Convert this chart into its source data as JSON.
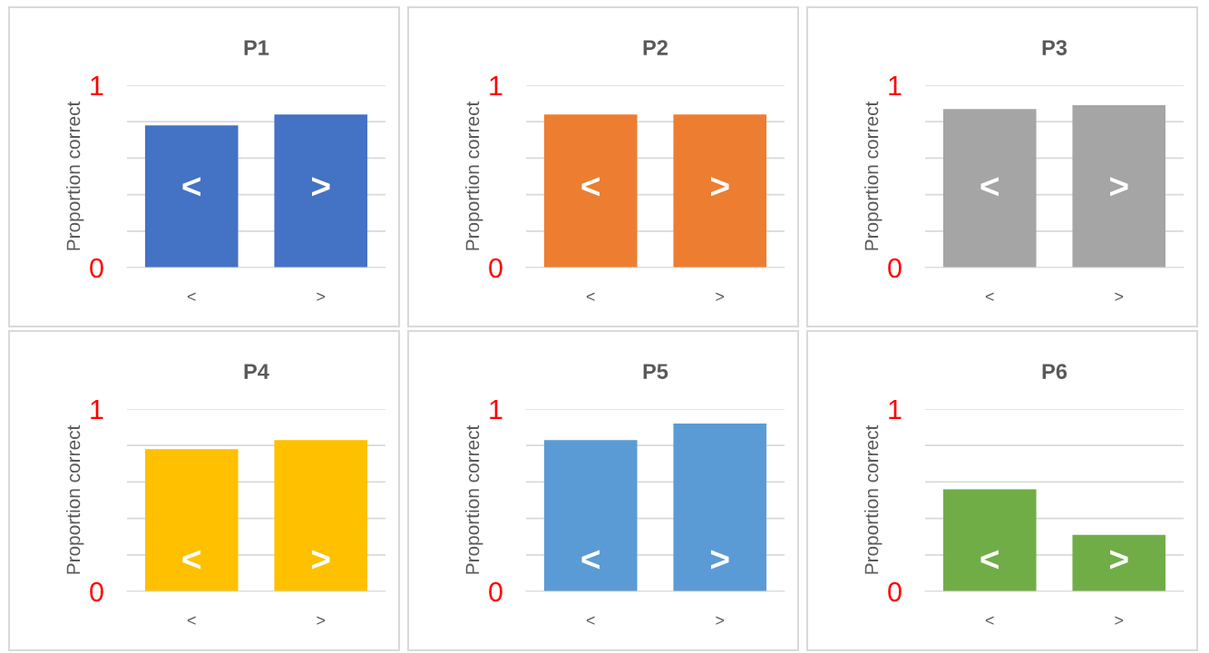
{
  "chart_data": [
    {
      "type": "bar",
      "title": "P1",
      "ylabel": "Proportion correct",
      "categories": [
        "<",
        ">"
      ],
      "series": [
        {
          "color": "#4472c4",
          "values": [
            0.78,
            0.84
          ]
        }
      ],
      "ylim": [
        0,
        1
      ],
      "yticks": [
        0,
        {
          "value": 0.2,
          "label": null
        },
        {
          "value": 0.4,
          "label": null
        },
        {
          "value": 0.6,
          "label": null
        },
        {
          "value": 0.8,
          "label": null
        },
        1
      ],
      "grid": "y",
      "annotations": [
        "<",
        ">"
      ]
    },
    {
      "type": "bar",
      "title": "P2",
      "ylabel": "Proportion correct",
      "categories": [
        "<",
        ">"
      ],
      "series": [
        {
          "color": "#ed7d31",
          "values": [
            0.84,
            0.84
          ]
        }
      ],
      "ylim": [
        0,
        1
      ],
      "yticks": [
        0,
        {
          "value": 0.2,
          "label": null
        },
        {
          "value": 0.4,
          "label": null
        },
        {
          "value": 0.6,
          "label": null
        },
        {
          "value": 0.8,
          "label": null
        },
        1
      ],
      "grid": "y",
      "annotations": [
        "<",
        ">"
      ]
    },
    {
      "type": "bar",
      "title": "P3",
      "ylabel": "Proportion correct",
      "categories": [
        "<",
        ">"
      ],
      "series": [
        {
          "color": "#a5a5a5",
          "values": [
            0.87,
            0.89
          ]
        }
      ],
      "ylim": [
        0,
        1
      ],
      "yticks": [
        0,
        {
          "value": 0.2,
          "label": null
        },
        {
          "value": 0.4,
          "label": null
        },
        {
          "value": 0.6,
          "label": null
        },
        {
          "value": 0.8,
          "label": null
        },
        1
      ],
      "grid": "y",
      "annotations": [
        "<",
        ">"
      ]
    },
    {
      "type": "bar",
      "title": "P4",
      "ylabel": "Proportion correct",
      "categories": [
        "<",
        ">"
      ],
      "series": [
        {
          "color": "#ffc000",
          "values": [
            0.78,
            0.83
          ]
        }
      ],
      "ylim": [
        0,
        1
      ],
      "yticks": [
        0,
        {
          "value": 0.2,
          "label": null
        },
        {
          "value": 0.4,
          "label": null
        },
        {
          "value": 0.6,
          "label": null
        },
        {
          "value": 0.8,
          "label": null
        },
        1
      ],
      "grid": "y",
      "annotations": [
        "<",
        ">"
      ]
    },
    {
      "type": "bar",
      "title": "P5",
      "ylabel": "Proportion correct",
      "categories": [
        "<",
        ">"
      ],
      "series": [
        {
          "color": "#5b9bd5",
          "values": [
            0.83,
            0.92
          ]
        }
      ],
      "ylim": [
        0,
        1
      ],
      "yticks": [
        0,
        {
          "value": 0.2,
          "label": null
        },
        {
          "value": 0.4,
          "label": null
        },
        {
          "value": 0.6,
          "label": null
        },
        {
          "value": 0.8,
          "label": null
        },
        1
      ],
      "grid": "y",
      "annotations": [
        "<",
        ">"
      ]
    },
    {
      "type": "bar",
      "title": "P6",
      "ylabel": "Proportion correct",
      "categories": [
        "<",
        ">"
      ],
      "series": [
        {
          "color": "#70ad47",
          "values": [
            0.56,
            0.31
          ]
        }
      ],
      "ylim": [
        0,
        1
      ],
      "yticks": [
        0,
        {
          "value": 0.2,
          "label": null
        },
        {
          "value": 0.4,
          "label": null
        },
        {
          "value": 0.6,
          "label": null
        },
        {
          "value": 0.8,
          "label": null
        },
        1
      ],
      "grid": "y",
      "annotations": [
        "<",
        ">"
      ]
    }
  ]
}
